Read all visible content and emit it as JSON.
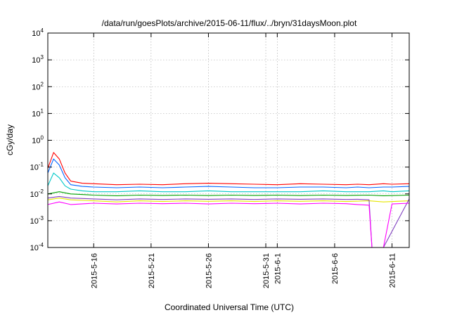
{
  "chart_data": {
    "type": "line",
    "title": "/data/run/goesPlots/archive/2015-06-11/flux/../bryn/31daysMoon.plot",
    "xlabel": "Coordinated Universal Time (UTC)",
    "ylabel": "cGy/day",
    "yscale": "log",
    "ylim": [
      0.0001,
      10000
    ],
    "xlim": [
      "2015-05-12",
      "2015-06-12 12:00"
    ],
    "grid": true,
    "legend": "none",
    "y_ticks": [
      {
        "base": "10",
        "exp": "-4",
        "value": 0.0001
      },
      {
        "base": "10",
        "exp": "-3",
        "value": 0.001
      },
      {
        "base": "10",
        "exp": "-2",
        "value": 0.01
      },
      {
        "base": "10",
        "exp": "-1",
        "value": 0.1
      },
      {
        "base": "10",
        "exp": "0",
        "value": 1
      },
      {
        "base": "10",
        "exp": "1",
        "value": 10
      },
      {
        "base": "10",
        "exp": "2",
        "value": 100
      },
      {
        "base": "10",
        "exp": "3",
        "value": 1000
      },
      {
        "base": "10",
        "exp": "4",
        "value": 10000
      }
    ],
    "x_ticks": [
      {
        "label": "2015-5-16",
        "date": "2015-05-16"
      },
      {
        "label": "2015-5-21",
        "date": "2015-05-21"
      },
      {
        "label": "2015-5-26",
        "date": "2015-05-26"
      },
      {
        "label": "2015-5-31",
        "date": "2015-05-31"
      },
      {
        "label": "2015-6-1",
        "date": "2015-06-01"
      },
      {
        "label": "2015-6-6",
        "date": "2015-06-06"
      },
      {
        "label": "2015-6-11",
        "date": "2015-06-11"
      }
    ],
    "data_gap": [
      "2015-06-09 06:00",
      "2015-06-10 06:00"
    ],
    "series": [
      {
        "color": "#ff0000",
        "x": [
          "2015-05-12",
          "2015-05-12 12:00",
          "2015-05-13",
          "2015-05-13 12:00",
          "2015-05-14",
          "2015-05-15",
          "2015-05-16",
          "2015-05-18",
          "2015-05-20",
          "2015-05-22",
          "2015-05-24",
          "2015-05-26",
          "2015-05-28",
          "2015-05-30",
          "2015-06-01",
          "2015-06-03",
          "2015-06-05",
          "2015-06-07",
          "2015-06-08",
          "2015-06-09",
          "2015-06-10 06:00",
          "2015-06-11",
          "2015-06-12 12:00"
        ],
        "y": [
          0.09,
          0.35,
          0.2,
          0.06,
          0.03,
          0.025,
          0.024,
          0.022,
          0.023,
          0.022,
          0.024,
          0.025,
          0.024,
          0.023,
          0.022,
          0.024,
          0.023,
          0.022,
          0.023,
          0.022,
          0.024,
          0.023,
          0.024
        ]
      },
      {
        "color": "#0064ff",
        "x": [
          "2015-05-12",
          "2015-05-12 12:00",
          "2015-05-13",
          "2015-05-13 12:00",
          "2015-05-14",
          "2015-05-15",
          "2015-05-16",
          "2015-05-18",
          "2015-05-20",
          "2015-05-22",
          "2015-05-24",
          "2015-05-26",
          "2015-05-28",
          "2015-05-30",
          "2015-06-01",
          "2015-06-03",
          "2015-06-05",
          "2015-06-07",
          "2015-06-08",
          "2015-06-09",
          "2015-06-10 06:00",
          "2015-06-11",
          "2015-06-12 12:00"
        ],
        "y": [
          0.06,
          0.2,
          0.12,
          0.04,
          0.022,
          0.019,
          0.018,
          0.017,
          0.018,
          0.017,
          0.018,
          0.019,
          0.018,
          0.017,
          0.017,
          0.018,
          0.018,
          0.017,
          0.018,
          0.017,
          0.018,
          0.018,
          0.019
        ]
      },
      {
        "color": "#00c8c8",
        "x": [
          "2015-05-12",
          "2015-05-12 12:00",
          "2015-05-13",
          "2015-05-13 12:00",
          "2015-05-14",
          "2015-05-15",
          "2015-05-16",
          "2015-05-18",
          "2015-05-20",
          "2015-05-22",
          "2015-05-24",
          "2015-05-26",
          "2015-05-28",
          "2015-05-30",
          "2015-06-01",
          "2015-06-03",
          "2015-06-05",
          "2015-06-07",
          "2015-06-08",
          "2015-06-09",
          "2015-06-10 06:00",
          "2015-06-11",
          "2015-06-12 12:00"
        ],
        "y": [
          0.02,
          0.06,
          0.04,
          0.02,
          0.015,
          0.013,
          0.012,
          0.012,
          0.013,
          0.012,
          0.012,
          0.013,
          0.012,
          0.012,
          0.012,
          0.012,
          0.013,
          0.012,
          0.012,
          0.012,
          0.013,
          0.012,
          0.013
        ]
      },
      {
        "color": "#00a000",
        "x": [
          "2015-05-12",
          "2015-05-13",
          "2015-05-14",
          "2015-05-16",
          "2015-05-18",
          "2015-05-20",
          "2015-05-22",
          "2015-05-24",
          "2015-05-26",
          "2015-05-28",
          "2015-05-30",
          "2015-06-01",
          "2015-06-03",
          "2015-06-05",
          "2015-06-07",
          "2015-06-09",
          "2015-06-10 06:00",
          "2015-06-12 12:00"
        ],
        "y": [
          0.01,
          0.012,
          0.01,
          0.009,
          0.0085,
          0.009,
          0.0088,
          0.009,
          0.0087,
          0.009,
          0.0088,
          0.009,
          0.0087,
          0.009,
          0.0088,
          0.009,
          0.0085,
          0.009
        ]
      },
      {
        "color": "#e6e600",
        "x": [
          "2015-05-12",
          "2015-05-13",
          "2015-05-14",
          "2015-05-16",
          "2015-05-18",
          "2015-05-20",
          "2015-05-22",
          "2015-05-24",
          "2015-05-26",
          "2015-05-28",
          "2015-05-30",
          "2015-06-01",
          "2015-06-03",
          "2015-06-05",
          "2015-06-07",
          "2015-06-09",
          "2015-06-10 06:00",
          "2015-06-12 12:00"
        ],
        "y": [
          0.006,
          0.007,
          0.006,
          0.0055,
          0.005,
          0.0055,
          0.0052,
          0.0055,
          0.0053,
          0.0055,
          0.0052,
          0.0055,
          0.0053,
          0.0055,
          0.0052,
          0.0055,
          0.005,
          0.0055
        ]
      },
      {
        "color": "#8040c0",
        "x": [
          "2015-05-12",
          "2015-05-13",
          "2015-05-14",
          "2015-05-16",
          "2015-05-18",
          "2015-05-20",
          "2015-05-22",
          "2015-05-24",
          "2015-05-26",
          "2015-05-28",
          "2015-05-30",
          "2015-06-01",
          "2015-06-03",
          "2015-06-05",
          "2015-06-07",
          "2015-06-08",
          "2015-06-09",
          "2015-06-09 06:00",
          "2015-06-10 06:00",
          "2015-06-12 12:00"
        ],
        "y": [
          0.007,
          0.008,
          0.007,
          0.0065,
          0.006,
          0.0065,
          0.0062,
          0.0065,
          0.0063,
          0.0065,
          0.0062,
          0.0065,
          0.0063,
          0.0065,
          0.0062,
          0.0063,
          0.006,
          0.0001,
          0.0001,
          0.0065
        ]
      },
      {
        "color": "#ff00ff",
        "x": [
          "2015-05-12",
          "2015-05-13",
          "2015-05-14",
          "2015-05-16",
          "2015-05-18",
          "2015-05-20",
          "2015-05-22",
          "2015-05-24",
          "2015-05-26",
          "2015-05-28",
          "2015-05-30",
          "2015-06-01",
          "2015-06-03",
          "2015-06-05",
          "2015-06-07",
          "2015-06-08",
          "2015-06-09",
          "2015-06-09 06:00",
          "2015-06-10 06:00",
          "2015-06-11",
          "2015-06-12 12:00"
        ],
        "y": [
          0.004,
          0.005,
          0.004,
          0.0045,
          0.0042,
          0.0045,
          0.0043,
          0.0045,
          0.0042,
          0.0045,
          0.0043,
          0.0045,
          0.0042,
          0.0045,
          0.0043,
          0.004,
          0.0038,
          0.0001,
          0.0001,
          0.0042,
          0.0045
        ]
      }
    ]
  }
}
